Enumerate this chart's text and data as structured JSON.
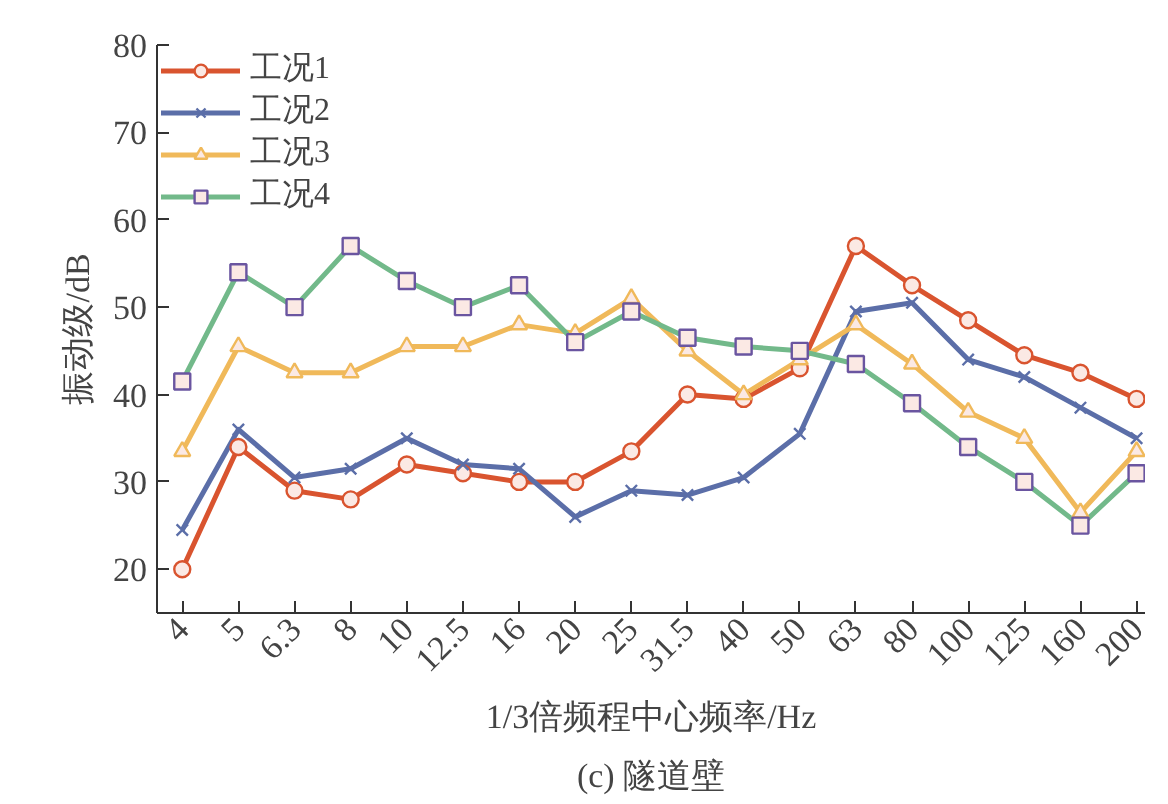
{
  "chart_data": {
    "type": "line",
    "title": "(c) 隧道壁",
    "xlabel": "1/3倍频程中心频率/Hz",
    "ylabel": "振动级/dB",
    "categories": [
      "4",
      "5",
      "6.3",
      "8",
      "10",
      "12.5",
      "16",
      "20",
      "25",
      "31.5",
      "40",
      "50",
      "63",
      "80",
      "100",
      "125",
      "160",
      "200"
    ],
    "series": [
      {
        "name": "工况1",
        "color": "#d9542f",
        "marker": "circle",
        "values": [
          20,
          34,
          29,
          28,
          32,
          31,
          30,
          30,
          33.5,
          40,
          39.5,
          43,
          57,
          52.5,
          48.5,
          44.5,
          42.5,
          39.5
        ]
      },
      {
        "name": "工况2",
        "color": "#5b6ea8",
        "marker": "cross",
        "values": [
          24.5,
          36,
          30.5,
          31.5,
          35,
          32,
          31.5,
          26,
          29,
          28.5,
          30.5,
          35.5,
          49.5,
          50.5,
          44,
          42,
          38.5,
          35
        ]
      },
      {
        "name": "工况3",
        "color": "#f0b95a",
        "marker": "triangle",
        "values": [
          33.5,
          45.5,
          42.5,
          42.5,
          45.5,
          45.5,
          48,
          47,
          51,
          45,
          40,
          44,
          48,
          43.5,
          38,
          35,
          26.5,
          33.5
        ]
      },
      {
        "name": "工况4",
        "color": "#72b98a",
        "marker": "square",
        "values": [
          41.5,
          54,
          50,
          57,
          53,
          50,
          52.5,
          46,
          49.5,
          46.5,
          45.5,
          45,
          43.5,
          39,
          34,
          30,
          25,
          31
        ]
      }
    ],
    "ylim": [
      15,
      80
    ],
    "yticks": [
      20,
      30,
      40,
      50,
      60,
      70,
      80
    ],
    "grid": false,
    "legend": "top left",
    "line_style": "solid"
  }
}
